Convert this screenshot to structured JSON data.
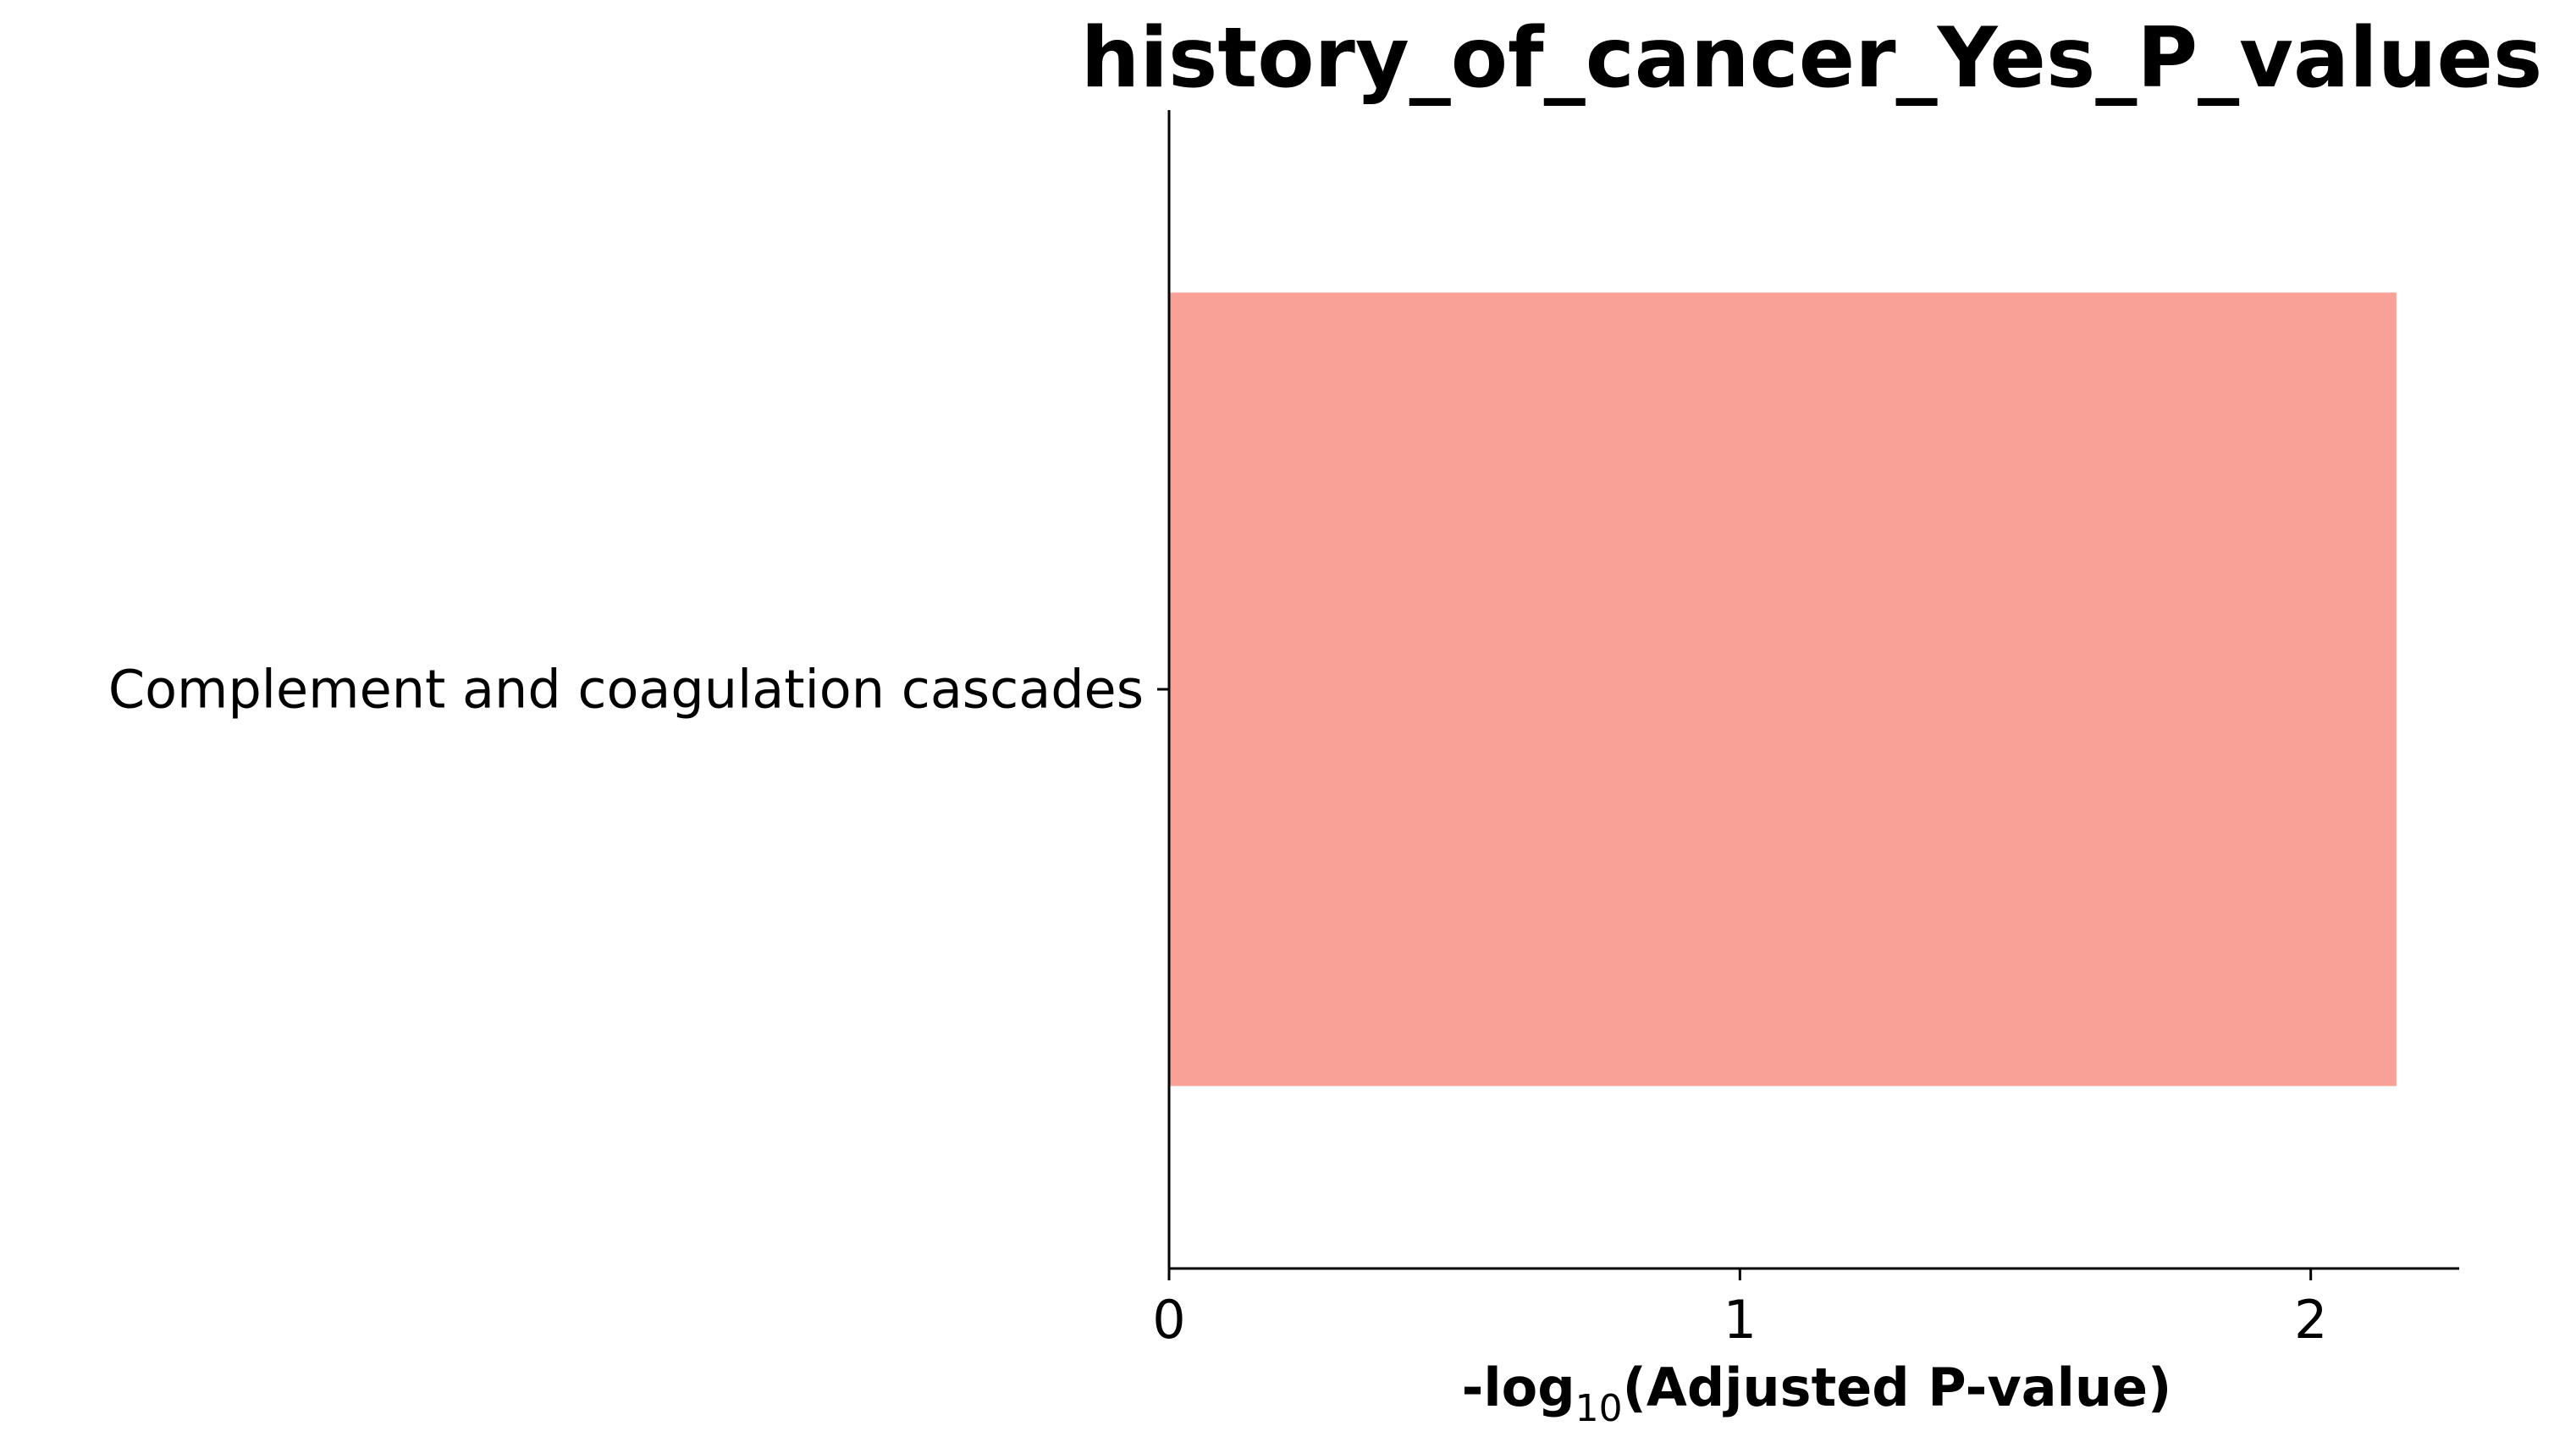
{
  "chart_data": {
    "type": "bar",
    "orientation": "horizontal",
    "title": "history_of_cancer_Yes_P_values",
    "categories": [
      "Complement and coagulation cascades"
    ],
    "values": [
      2.15
    ],
    "xlabel": {
      "prefix": "-log",
      "subscript": "10",
      "suffix": "(Adjusted P-value)"
    },
    "ylabel": "",
    "xlim": [
      0,
      2.26
    ],
    "xticks": [
      "0",
      "1",
      "2"
    ],
    "grid": false,
    "bar_color": "#F9A197",
    "legend": null
  }
}
